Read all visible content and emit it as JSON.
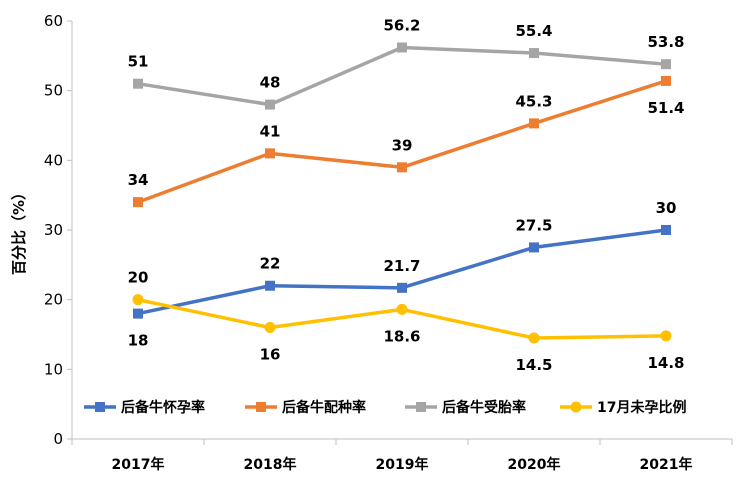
{
  "chart_data": {
    "type": "line",
    "ylabel": "百分比（%）",
    "categories": [
      "2017年",
      "2018年",
      "2019年",
      "2020年",
      "2021年"
    ],
    "ylim": [
      0,
      60
    ],
    "yticks": [
      0,
      10,
      20,
      30,
      40,
      50,
      60
    ],
    "grid": false,
    "legend_position": "bottom-inside",
    "series": [
      {
        "name": "后备牛怀孕率",
        "color": "#4472C4",
        "marker": "square",
        "values": [
          18,
          22,
          21.7,
          27.5,
          30
        ],
        "labels": [
          "18",
          "22",
          "21.7",
          "27.5",
          "30"
        ],
        "label_pos": [
          "below",
          "above",
          "above",
          "above",
          "above"
        ]
      },
      {
        "name": "后备牛配种率",
        "color": "#ED7D31",
        "marker": "square",
        "values": [
          34,
          41,
          39,
          45.3,
          51.4
        ],
        "labels": [
          "34",
          "41",
          "39",
          "45.3",
          "51.4"
        ],
        "label_pos": [
          "above",
          "above",
          "above",
          "above",
          "below"
        ]
      },
      {
        "name": "后备牛受胎率",
        "color": "#A5A5A5",
        "marker": "square",
        "values": [
          51,
          48,
          56.2,
          55.4,
          53.8
        ],
        "labels": [
          "51",
          "48",
          "56.2",
          "55.4",
          "53.8"
        ],
        "label_pos": [
          "above",
          "above",
          "above",
          "above",
          "above"
        ]
      },
      {
        "name": "17月未孕比例",
        "color": "#FFC000",
        "marker": "circle",
        "values": [
          20,
          16,
          18.6,
          14.5,
          14.8
        ],
        "labels": [
          "20",
          "16",
          "18.6",
          "14.5",
          "14.8"
        ],
        "label_pos": [
          "above",
          "below",
          "below",
          "below",
          "below"
        ]
      }
    ]
  }
}
